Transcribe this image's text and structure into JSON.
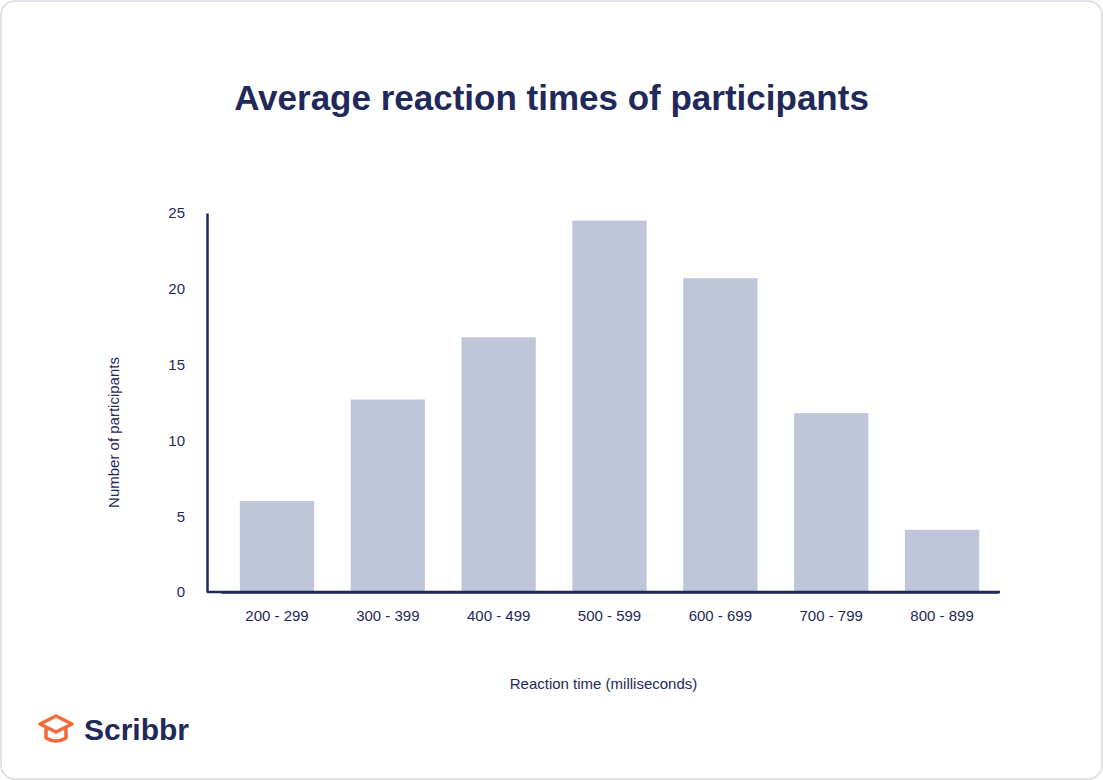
{
  "chart_data": {
    "type": "bar",
    "title": "Average reaction times of participants",
    "x_label": "Reaction time (milliseconds)",
    "y_label": "Number of participants",
    "source": "Scribbr",
    "categories": [
      "200 - 299",
      "300 - 399",
      "400 - 499",
      "500 - 599",
      "600 - 699",
      "700 - 799",
      "800 - 899"
    ],
    "values": [
      6,
      12.7,
      16.8,
      24.5,
      20.7,
      11.8,
      4.1
    ],
    "color": "#c0c6da",
    "ylim": [
      0,
      25
    ],
    "yticks": [
      0,
      5,
      10,
      15,
      20,
      25
    ],
    "grid": false
  }
}
